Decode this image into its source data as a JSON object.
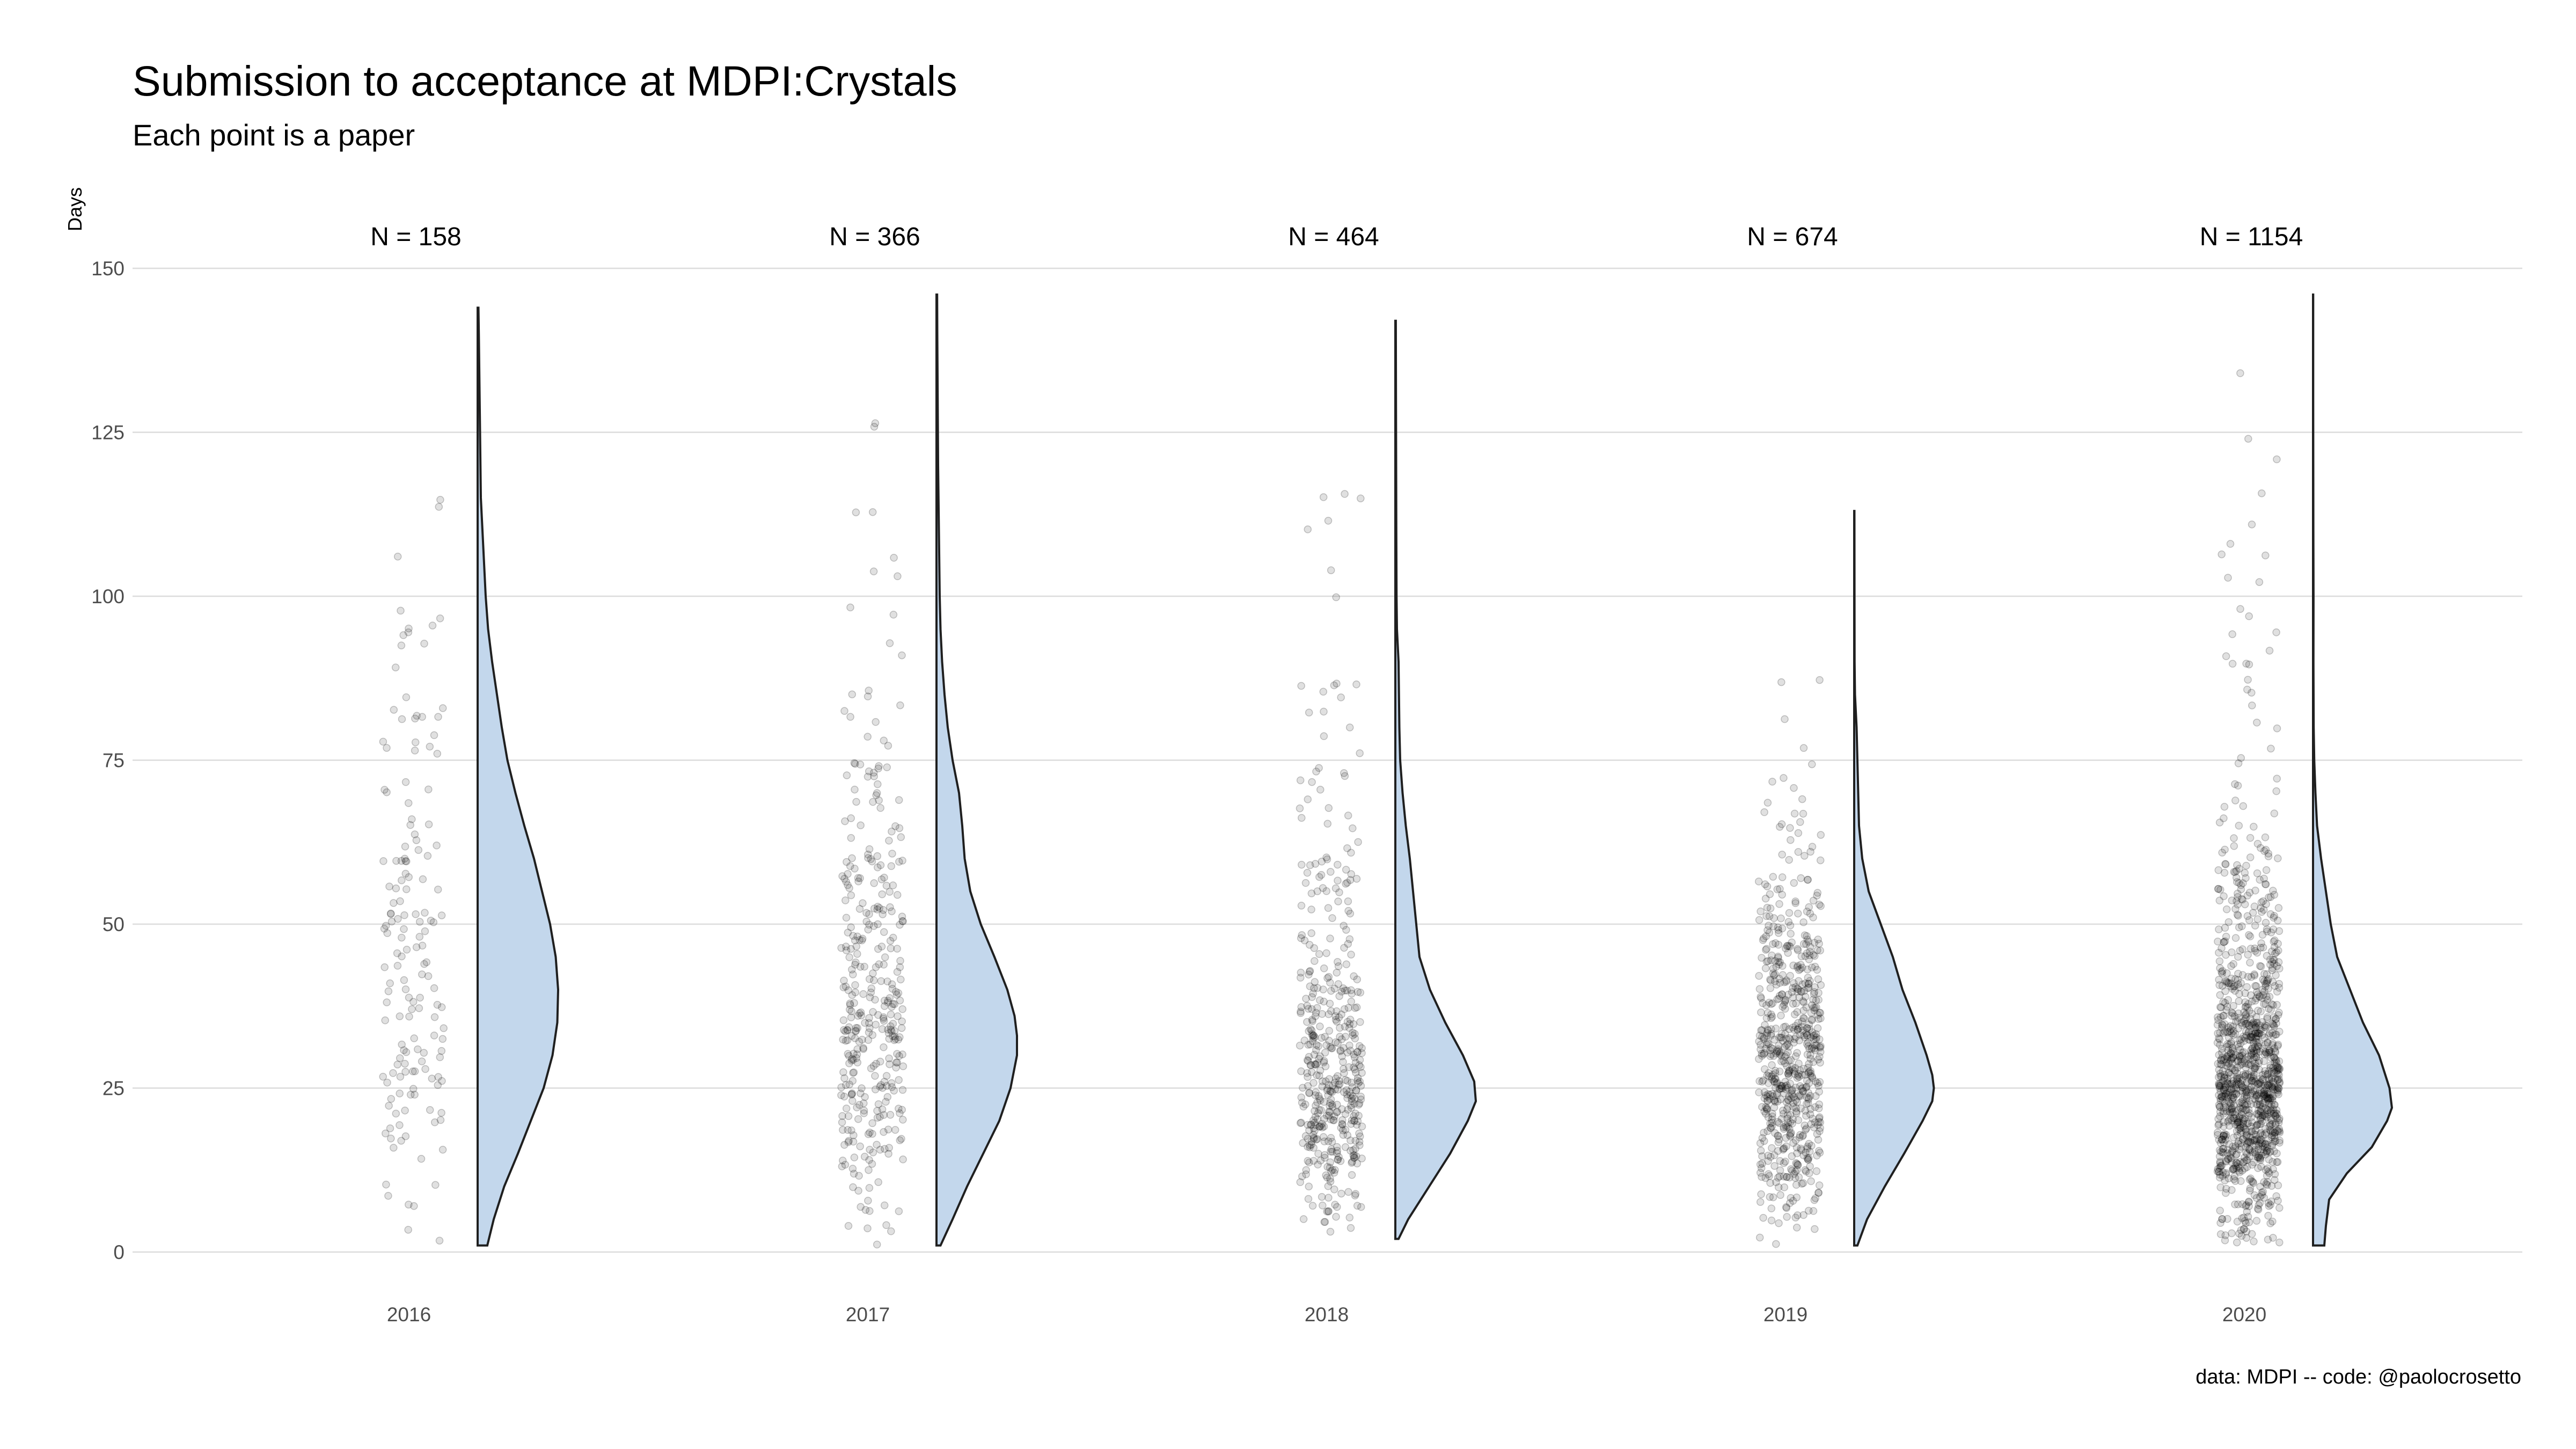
{
  "chart_data": {
    "type": "raincloud",
    "title": "Submission to acceptance at MDPI:Crystals",
    "subtitle": "Each point is a paper",
    "ylabel": "Days",
    "xlabel": "",
    "ylim": [
      0,
      150
    ],
    "yticks": [
      0,
      25,
      50,
      75,
      100,
      125,
      150
    ],
    "grid": true,
    "caption": "data: MDPI -- code: @paolocrosetto",
    "colors": {
      "violin_fill": "#c3d7ec",
      "violin_stroke": "#1f1f1f",
      "points": "#000000",
      "grid": "#dcdcdc"
    },
    "groups": [
      {
        "year": "2016",
        "n_label": "N = 158",
        "n": 158,
        "min": 1,
        "max": 144,
        "density": [
          [
            1,
            0.12
          ],
          [
            5,
            0.2
          ],
          [
            10,
            0.33
          ],
          [
            15,
            0.5
          ],
          [
            20,
            0.66
          ],
          [
            25,
            0.82
          ],
          [
            30,
            0.93
          ],
          [
            35,
            0.99
          ],
          [
            40,
            1.0
          ],
          [
            45,
            0.97
          ],
          [
            50,
            0.9
          ],
          [
            55,
            0.8
          ],
          [
            60,
            0.7
          ],
          [
            65,
            0.58
          ],
          [
            70,
            0.47
          ],
          [
            75,
            0.37
          ],
          [
            80,
            0.3
          ],
          [
            85,
            0.24
          ],
          [
            90,
            0.18
          ],
          [
            95,
            0.13
          ],
          [
            100,
            0.1
          ],
          [
            105,
            0.08
          ],
          [
            110,
            0.06
          ],
          [
            115,
            0.04
          ],
          [
            120,
            0.035
          ],
          [
            125,
            0.03
          ],
          [
            130,
            0.025
          ],
          [
            135,
            0.02
          ],
          [
            140,
            0.015
          ],
          [
            144,
            0.01
          ]
        ]
      },
      {
        "year": "2017",
        "n_label": "N = 366",
        "n": 366,
        "min": 1,
        "max": 146,
        "density": [
          [
            1,
            0.05
          ],
          [
            5,
            0.2
          ],
          [
            10,
            0.38
          ],
          [
            15,
            0.58
          ],
          [
            20,
            0.78
          ],
          [
            25,
            0.92
          ],
          [
            30,
            1.0
          ],
          [
            33,
            1.0
          ],
          [
            36,
            0.97
          ],
          [
            40,
            0.88
          ],
          [
            45,
            0.72
          ],
          [
            50,
            0.55
          ],
          [
            55,
            0.42
          ],
          [
            60,
            0.35
          ],
          [
            65,
            0.32
          ],
          [
            70,
            0.28
          ],
          [
            75,
            0.2
          ],
          [
            80,
            0.14
          ],
          [
            85,
            0.1
          ],
          [
            90,
            0.07
          ],
          [
            95,
            0.05
          ],
          [
            100,
            0.04
          ],
          [
            110,
            0.03
          ],
          [
            120,
            0.02
          ],
          [
            130,
            0.015
          ],
          [
            140,
            0.01
          ],
          [
            146,
            0.008
          ]
        ]
      },
      {
        "year": "2018",
        "n_label": "N = 464",
        "n": 464,
        "min": 2,
        "max": 142,
        "density": [
          [
            2,
            0.04
          ],
          [
            5,
            0.16
          ],
          [
            10,
            0.42
          ],
          [
            15,
            0.68
          ],
          [
            20,
            0.9
          ],
          [
            23,
            1.0
          ],
          [
            26,
            0.98
          ],
          [
            30,
            0.84
          ],
          [
            35,
            0.62
          ],
          [
            40,
            0.43
          ],
          [
            45,
            0.3
          ],
          [
            50,
            0.26
          ],
          [
            55,
            0.22
          ],
          [
            60,
            0.18
          ],
          [
            65,
            0.13
          ],
          [
            70,
            0.09
          ],
          [
            75,
            0.06
          ],
          [
            80,
            0.05
          ],
          [
            85,
            0.045
          ],
          [
            90,
            0.04
          ],
          [
            95,
            0.02
          ],
          [
            100,
            0.015
          ],
          [
            110,
            0.012
          ],
          [
            120,
            0.01
          ],
          [
            130,
            0.008
          ],
          [
            142,
            0.006
          ]
        ]
      },
      {
        "year": "2019",
        "n_label": "N = 674",
        "n": 674,
        "min": 1,
        "max": 113,
        "density": [
          [
            1,
            0.04
          ],
          [
            5,
            0.16
          ],
          [
            10,
            0.38
          ],
          [
            15,
            0.62
          ],
          [
            20,
            0.85
          ],
          [
            23,
            0.97
          ],
          [
            25,
            0.99
          ],
          [
            27,
            0.97
          ],
          [
            30,
            0.9
          ],
          [
            35,
            0.76
          ],
          [
            40,
            0.6
          ],
          [
            45,
            0.48
          ],
          [
            50,
            0.33
          ],
          [
            55,
            0.18
          ],
          [
            60,
            0.1
          ],
          [
            65,
            0.06
          ],
          [
            70,
            0.05
          ],
          [
            75,
            0.04
          ],
          [
            80,
            0.03
          ],
          [
            85,
            0.01
          ],
          [
            90,
            0.005
          ],
          [
            100,
            0.004
          ],
          [
            113,
            0.003
          ]
        ]
      },
      {
        "year": "2020",
        "n_label": "N = 1154",
        "n": 1154,
        "min": 1,
        "max": 146,
        "density": [
          [
            1,
            0.14
          ],
          [
            4,
            0.16
          ],
          [
            8,
            0.2
          ],
          [
            12,
            0.42
          ],
          [
            16,
            0.73
          ],
          [
            20,
            0.92
          ],
          [
            22,
            0.98
          ],
          [
            25,
            0.95
          ],
          [
            30,
            0.82
          ],
          [
            35,
            0.62
          ],
          [
            40,
            0.46
          ],
          [
            45,
            0.3
          ],
          [
            50,
            0.22
          ],
          [
            55,
            0.16
          ],
          [
            60,
            0.1
          ],
          [
            65,
            0.05
          ],
          [
            70,
            0.03
          ],
          [
            75,
            0.015
          ],
          [
            80,
            0.008
          ],
          [
            90,
            0.005
          ],
          [
            100,
            0.006
          ],
          [
            110,
            0.004
          ],
          [
            120,
            0.003
          ],
          [
            130,
            0.002
          ],
          [
            146,
            0.002
          ]
        ]
      }
    ]
  }
}
